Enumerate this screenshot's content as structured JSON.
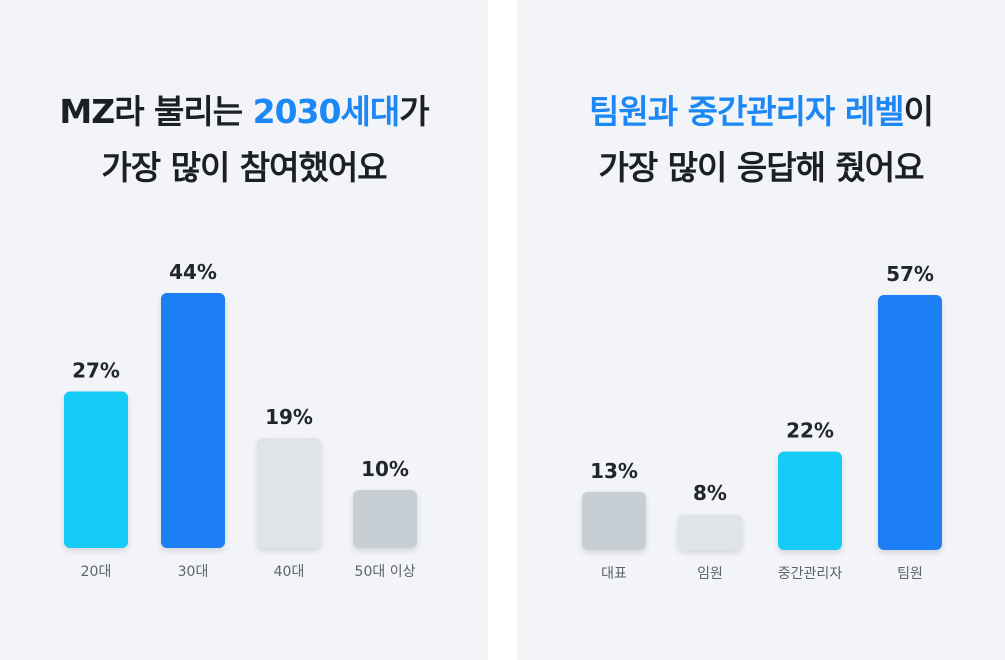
{
  "colors": {
    "panel_bg": "#f2f4f8",
    "highlight": "#1b88f6",
    "text": "#1c1f24"
  },
  "chart_data": [
    {
      "type": "bar",
      "title_parts": [
        {
          "text": "MZ라 불리는 ",
          "highlight": false
        },
        {
          "text": "2030세대",
          "highlight": true
        },
        {
          "text": "가",
          "highlight": false
        }
      ],
      "title_line2": "가장 많이 참여했어요",
      "categories": [
        "20대",
        "30대",
        "40대",
        "50대 이상"
      ],
      "values": [
        27,
        44,
        19,
        10
      ],
      "value_labels": [
        "27%",
        "44%",
        "19%",
        "10%"
      ],
      "bar_colors": [
        "#14cbf5",
        "#1b7ff5",
        "#e0e4e8",
        "#c7ced4"
      ],
      "ylim": [
        0,
        44
      ],
      "grid": false
    },
    {
      "type": "bar",
      "title_parts": [
        {
          "text": "팀원과 중간관리자 레벨",
          "highlight": true
        },
        {
          "text": "이",
          "highlight": false
        }
      ],
      "title_line2": "가장 많이 응답해 줬어요",
      "categories": [
        "대표",
        "임원",
        "중간관리자",
        "팀원"
      ],
      "values": [
        13,
        8,
        22,
        57
      ],
      "value_labels": [
        "13%",
        "8%",
        "22%",
        "57%"
      ],
      "bar_colors": [
        "#c7ced4",
        "#e0e4e8",
        "#14cbf5",
        "#1b7ff5"
      ],
      "ylim": [
        0,
        57
      ],
      "grid": false
    }
  ]
}
